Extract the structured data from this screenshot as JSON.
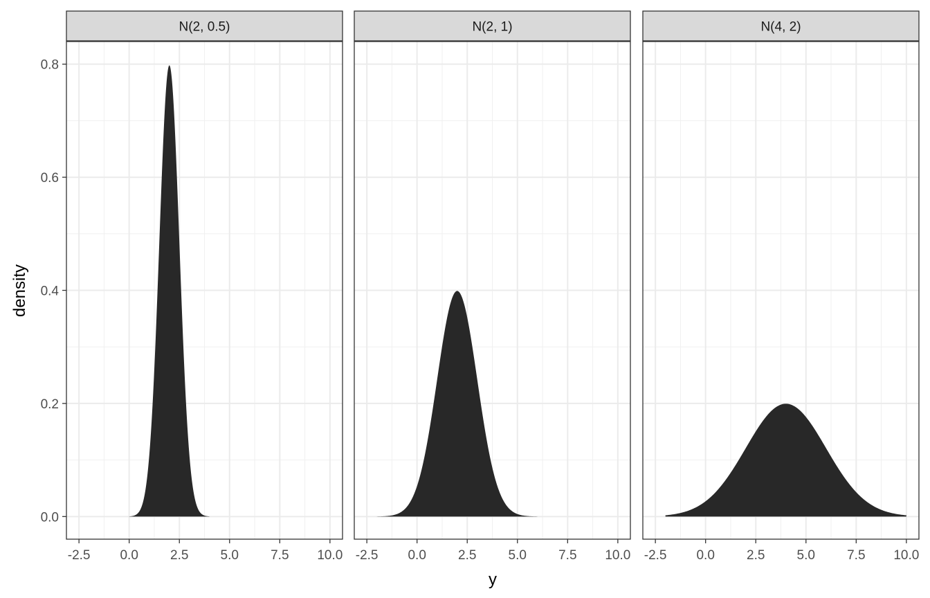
{
  "chart_data": {
    "type": "area",
    "xlabel": "y",
    "ylabel": "density",
    "xlim": [
      -2.5,
      10.0
    ],
    "ylim": [
      0.0,
      0.8
    ],
    "x_ticks": [
      -2.5,
      0.0,
      2.5,
      5.0,
      7.5,
      10.0
    ],
    "x_tick_labels": [
      "-2.5",
      "0.0",
      "2.5",
      "5.0",
      "7.5",
      "10.0"
    ],
    "y_ticks": [
      0.0,
      0.2,
      0.4,
      0.6,
      0.8
    ],
    "y_tick_labels": [
      "0.0",
      "0.2",
      "0.4",
      "0.6",
      "0.8"
    ],
    "grid": true,
    "fill_color": "#282828",
    "panels": [
      {
        "label": "N(2, 0.5)",
        "mean": 2,
        "sd": 0.5,
        "x_range": [
          0,
          4
        ],
        "peak_density": 0.798
      },
      {
        "label": "N(2, 1)",
        "mean": 2,
        "sd": 1,
        "x_range": [
          -2,
          6
        ],
        "peak_density": 0.399
      },
      {
        "label": "N(4, 2)",
        "mean": 4,
        "sd": 2,
        "x_range": [
          -2,
          10
        ],
        "peak_density": 0.199
      }
    ]
  }
}
